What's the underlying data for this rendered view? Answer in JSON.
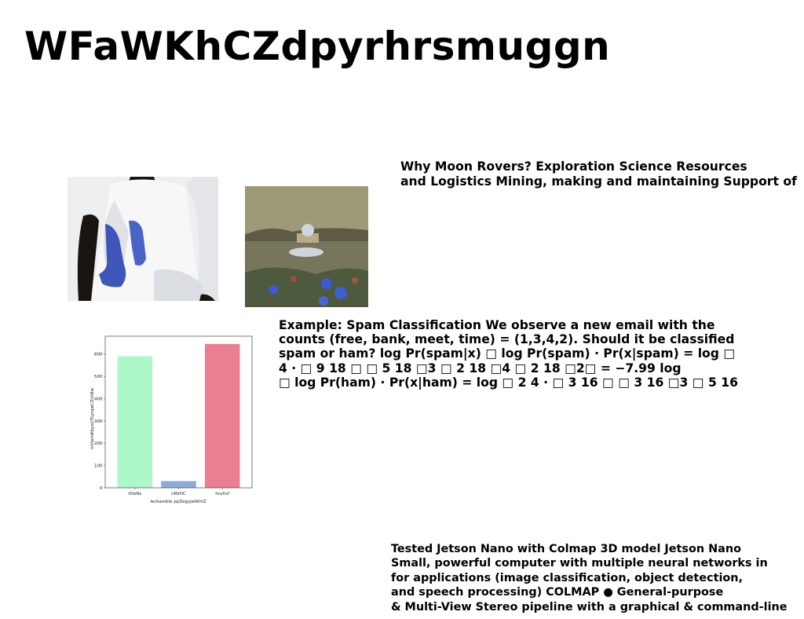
{
  "title": "WFaWKhCZdpyrhrsmuggn",
  "paragraph_1": {
    "lines": [
      "Why Moon Rovers? Exploration Science Resources",
      "and Logistics Mining, making and maintaining Support of"
    ]
  },
  "paragraph_2": {
    "lines": [
      "Example: Spam Classification We observe a new email with the",
      "counts (free, bank, meet, time) = (1,3,4,2). Should it be classified",
      "spam or ham? log Pr(spam|x) □ log Pr(spam) · Pr(x|spam) = log □",
      "4 · □ 9 18 □ □ 5 18 □3 □ 2 18 □4 □ 2 18 □2□ = −7.99 log",
      "□ log Pr(ham) · Pr(x|ham) = log □ 2 4 · □ 3 16 □ □ 3 16 □3 □ 5 16"
    ]
  },
  "paragraph_3": {
    "lines": [
      "Tested Jetson Nano with Colmap 3D model Jetson Nano",
      "Small, powerful computer with multiple neural networks in",
      "for applications (image classification, object detection,",
      "and speech processing) COLMAP ● General-purpose",
      "& Multi-View Stereo pipeline with a graphical & command-line"
    ]
  },
  "chart_data": {
    "type": "bar",
    "categories": [
      "tOoNs",
      "nRVHC",
      "hrxXxf"
    ],
    "values": [
      590,
      30,
      645
    ],
    "colors": [
      "#adf7c9",
      "#8bacd6",
      "#e97f90"
    ],
    "xlabel": "leckamble ppZegyjwWmZ",
    "ylabel": "mVwmKbyoUTLyrqwCZzh8w",
    "ylim": [
      0,
      680
    ],
    "yticks": [
      0,
      100,
      200,
      300,
      400,
      500,
      600
    ],
    "grid": false,
    "legend": "none"
  }
}
